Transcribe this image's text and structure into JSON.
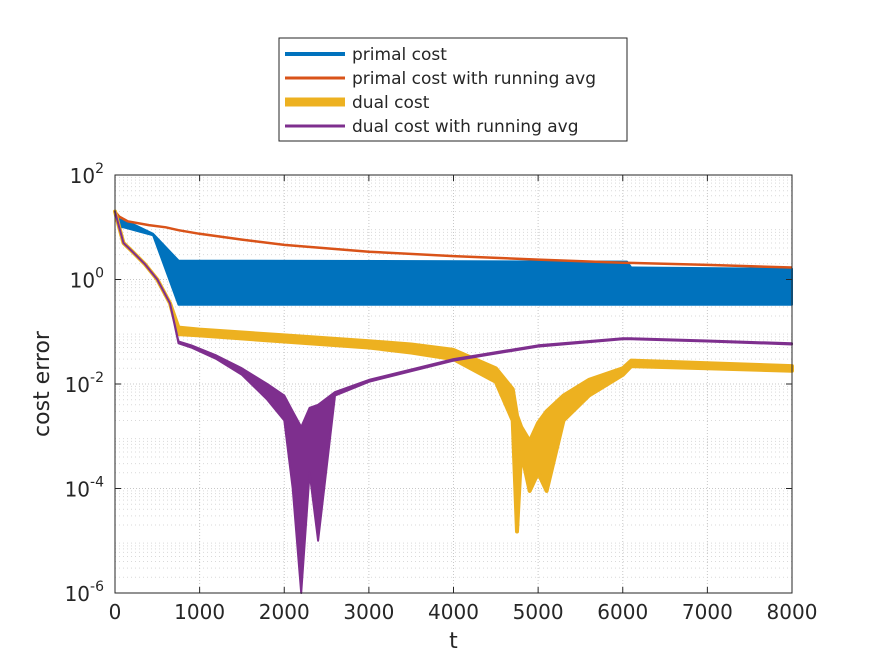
{
  "chart_data": {
    "type": "line",
    "xlabel": "t",
    "ylabel": "cost error",
    "xlim": [
      0,
      8000
    ],
    "ylim": [
      1e-06,
      100
    ],
    "yscale": "log",
    "grid": true,
    "minor_grid": true,
    "legend_position": "outside-top",
    "x_ticks": [
      "0",
      "1000",
      "2000",
      "3000",
      "4000",
      "5000",
      "6000",
      "7000",
      "8000"
    ],
    "y_ticks": [
      {
        "base": "10",
        "exp": "-6",
        "value": 1e-06
      },
      {
        "base": "10",
        "exp": "-4",
        "value": 0.0001
      },
      {
        "base": "10",
        "exp": "-2",
        "value": 0.01
      },
      {
        "base": "10",
        "exp": "0",
        "value": 1
      },
      {
        "base": "10",
        "exp": "2",
        "value": 100
      }
    ],
    "series": [
      {
        "name": "primal cost",
        "color": "#0072BD",
        "style": "oscillating-band",
        "x": [
          0,
          50,
          100,
          450,
          750,
          6050,
          6100,
          8000
        ],
        "upper": [
          20,
          14,
          14,
          7.5,
          2.3,
          2.2,
          1.7,
          1.6
        ],
        "lower": [
          20,
          10,
          10,
          7.0,
          0.33,
          0.33,
          0.33,
          0.33
        ]
      },
      {
        "name": "primal cost with running avg",
        "color": "#D95319",
        "style": "line",
        "x": [
          0,
          50,
          150,
          400,
          600,
          750,
          1000,
          1500,
          2000,
          3000,
          4000,
          5000,
          6000,
          7000,
          8000
        ],
        "y": [
          20,
          16,
          13,
          11,
          10,
          8.8,
          7.5,
          5.8,
          4.6,
          3.4,
          2.8,
          2.4,
          2.1,
          1.9,
          1.7
        ]
      },
      {
        "name": "dual cost",
        "color": "#EDB120",
        "style": "oscillating-band",
        "x": [
          0,
          50,
          100,
          200,
          350,
          500,
          650,
          750,
          1000,
          2000,
          3000,
          3500,
          4000,
          4500,
          4700,
          4750,
          4800,
          4900,
          5000,
          5100,
          5300,
          5600,
          6000,
          6100,
          7000,
          8000
        ],
        "upper": [
          20,
          10,
          5,
          3.5,
          2,
          1,
          0.35,
          0.12,
          0.11,
          0.085,
          0.066,
          0.057,
          0.045,
          0.02,
          0.008,
          0.0025,
          0.0015,
          0.0008,
          0.0018,
          0.003,
          0.006,
          0.012,
          0.02,
          0.028,
          0.025,
          0.022
        ],
        "lower": [
          20,
          10,
          5,
          3.5,
          2,
          1,
          0.35,
          0.09,
          0.085,
          0.065,
          0.05,
          0.04,
          0.03,
          0.011,
          0.002,
          1.5e-05,
          0.0005,
          9e-05,
          0.0002,
          9e-05,
          0.002,
          0.006,
          0.015,
          0.022,
          0.02,
          0.018
        ]
      },
      {
        "name": "dual cost with running avg",
        "color": "#7E2F8E",
        "style": "oscillating-band",
        "x": [
          0,
          50,
          100,
          200,
          350,
          500,
          650,
          750,
          900,
          1200,
          1500,
          1800,
          2000,
          2100,
          2200,
          2300,
          2400,
          2600,
          3000,
          4000,
          5000,
          6000,
          6100,
          7000,
          8000
        ],
        "upper": [
          20,
          10,
          5,
          3.5,
          2,
          1,
          0.35,
          0.065,
          0.055,
          0.035,
          0.02,
          0.01,
          0.006,
          0.003,
          0.0015,
          0.0035,
          0.004,
          0.007,
          0.012,
          0.03,
          0.055,
          0.075,
          0.075,
          0.068,
          0.06
        ],
        "lower": [
          20,
          10,
          5,
          3.5,
          2,
          1,
          0.35,
          0.06,
          0.05,
          0.03,
          0.015,
          0.005,
          0.002,
          0.0001,
          1e-06,
          0.0002,
          1e-05,
          0.006,
          0.011,
          0.028,
          0.052,
          0.072,
          0.072,
          0.065,
          0.057
        ]
      }
    ]
  }
}
